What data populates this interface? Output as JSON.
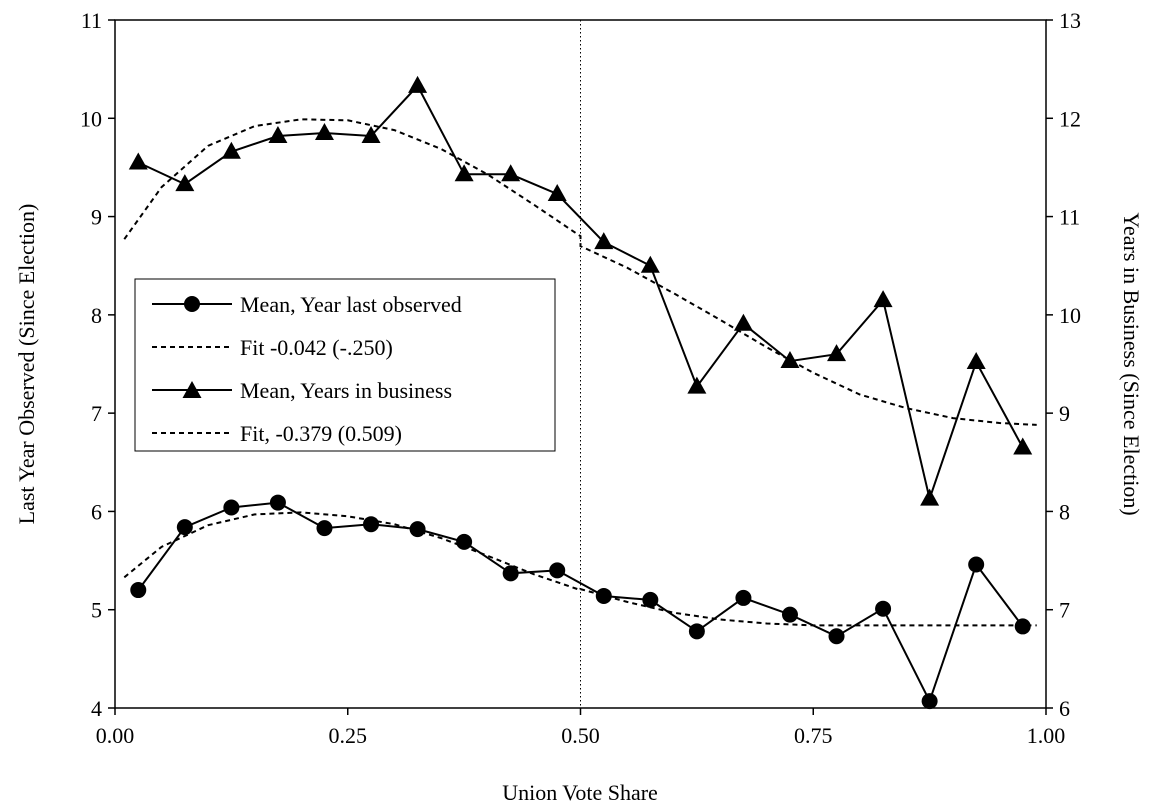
{
  "chart_data": {
    "type": "line",
    "xlabel": "Union Vote Share",
    "ylabel_left": "Last Year Observed (Since Election)",
    "ylabel_right": "Years in Business (Since Election)",
    "xlim": [
      0,
      1
    ],
    "ylim_left": [
      4,
      11
    ],
    "ylim_right": [
      6,
      13
    ],
    "x_ticks": [
      0,
      0.25,
      0.5,
      0.75,
      1
    ],
    "x_tick_labels": [
      "0.00",
      "0.25",
      "0.50",
      "0.75",
      "1.00"
    ],
    "y_left_ticks": [
      4,
      5,
      6,
      7,
      8,
      9,
      10,
      11
    ],
    "y_left_tick_labels": [
      "4",
      "5",
      "6",
      "7",
      "8",
      "9",
      "10",
      "11"
    ],
    "y_right_ticks": [
      6,
      7,
      8,
      9,
      10,
      11,
      12,
      13
    ],
    "y_right_tick_labels": [
      "6",
      "7",
      "8",
      "9",
      "10",
      "11",
      "12",
      "13"
    ],
    "threshold_x": 0.5,
    "grid": false,
    "legend_position": "left-middle",
    "series": [
      {
        "name": "Mean, Year last observed",
        "axis": "left",
        "marker": "circle",
        "style": "solid",
        "x": [
          0.025,
          0.075,
          0.125,
          0.175,
          0.225,
          0.275,
          0.325,
          0.375,
          0.425,
          0.475,
          0.525,
          0.575,
          0.625,
          0.675,
          0.725,
          0.775,
          0.825,
          0.875,
          0.925,
          0.975
        ],
        "y": [
          5.2,
          5.84,
          6.04,
          6.09,
          5.83,
          5.87,
          5.82,
          5.69,
          5.37,
          5.4,
          5.14,
          5.1,
          4.78,
          5.12,
          4.95,
          4.73,
          5.01,
          4.07,
          5.46,
          4.83
        ]
      },
      {
        "name": "Fit -0.042 (-.250)",
        "axis": "left",
        "marker": "none",
        "style": "dashed",
        "x": [
          0.01,
          0.05,
          0.1,
          0.15,
          0.2,
          0.25,
          0.3,
          0.35,
          0.4,
          0.45,
          0.5,
          0.5,
          0.55,
          0.6,
          0.65,
          0.7,
          0.75,
          0.8,
          0.85,
          0.9,
          0.95,
          0.99
        ],
        "y": [
          5.33,
          5.64,
          5.86,
          5.97,
          5.99,
          5.95,
          5.87,
          5.73,
          5.55,
          5.36,
          5.2,
          5.21,
          5.08,
          4.97,
          4.9,
          4.86,
          4.84,
          4.84,
          4.84,
          4.84,
          4.84,
          4.84
        ]
      },
      {
        "name": "Mean, Years in business",
        "axis": "right",
        "marker": "triangle",
        "style": "solid",
        "x": [
          0.025,
          0.075,
          0.125,
          0.175,
          0.225,
          0.275,
          0.325,
          0.375,
          0.425,
          0.475,
          0.525,
          0.575,
          0.625,
          0.675,
          0.725,
          0.775,
          0.825,
          0.875,
          0.925,
          0.975
        ],
        "y": [
          11.55,
          11.33,
          11.66,
          11.82,
          11.85,
          11.82,
          12.33,
          11.43,
          11.43,
          11.23,
          10.74,
          10.5,
          9.27,
          9.91,
          9.53,
          9.6,
          10.15,
          8.13,
          9.52,
          8.65
        ]
      },
      {
        "name": "Fit, -0.379 (0.509)",
        "axis": "right",
        "marker": "none",
        "style": "dashed",
        "x": [
          0.01,
          0.05,
          0.1,
          0.15,
          0.2,
          0.25,
          0.3,
          0.35,
          0.4,
          0.45,
          0.5,
          0.5,
          0.55,
          0.6,
          0.65,
          0.7,
          0.75,
          0.8,
          0.85,
          0.9,
          0.95,
          0.99
        ],
        "y": [
          10.77,
          11.3,
          11.72,
          11.92,
          11.99,
          11.98,
          11.88,
          11.69,
          11.43,
          11.12,
          10.8,
          10.7,
          10.48,
          10.22,
          9.95,
          9.67,
          9.41,
          9.19,
          9.05,
          8.95,
          8.9,
          8.88
        ]
      }
    ]
  }
}
